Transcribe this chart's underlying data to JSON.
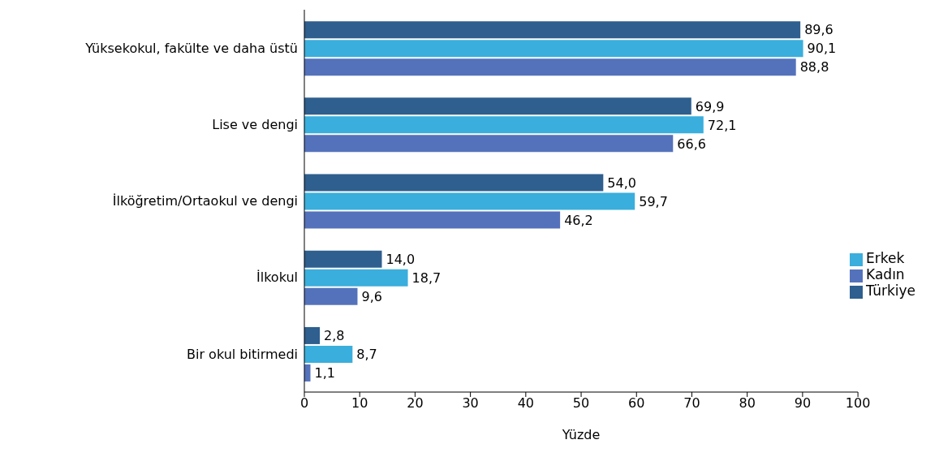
{
  "chart_data": {
    "type": "bar",
    "orientation": "horizontal",
    "xlabel": "Yüzde",
    "categories": [
      "Yüksekokul, fakülte ve daha üstü",
      "Lise ve dengi",
      "İlköğretim/Ortaokul ve dengi",
      "İlkokul",
      "Bir okul bitirmedi"
    ],
    "series": [
      {
        "name": "Türkiye",
        "color": "#2e5f8e",
        "values": [
          89.6,
          69.9,
          54.0,
          14.0,
          2.8
        ],
        "value_labels": [
          "89,6",
          "69,9",
          "54,0",
          "14,0",
          "2,8"
        ]
      },
      {
        "name": "Erkek",
        "color": "#3aaedc",
        "values": [
          90.1,
          72.1,
          59.7,
          18.7,
          8.7
        ],
        "value_labels": [
          "90,1",
          "72,1",
          "59,7",
          "18,7",
          "8,7"
        ]
      },
      {
        "name": "Kadın",
        "color": "#5472bb",
        "values": [
          88.8,
          66.6,
          46.2,
          9.6,
          1.1
        ],
        "value_labels": [
          "88,8",
          "66,6",
          "46,2",
          "9,6",
          "1,1"
        ]
      }
    ],
    "xlim": [
      0,
      100
    ],
    "xticks": [
      0,
      10,
      20,
      30,
      40,
      50,
      60,
      70,
      80,
      90,
      100
    ],
    "grid": false,
    "legend": "right"
  }
}
